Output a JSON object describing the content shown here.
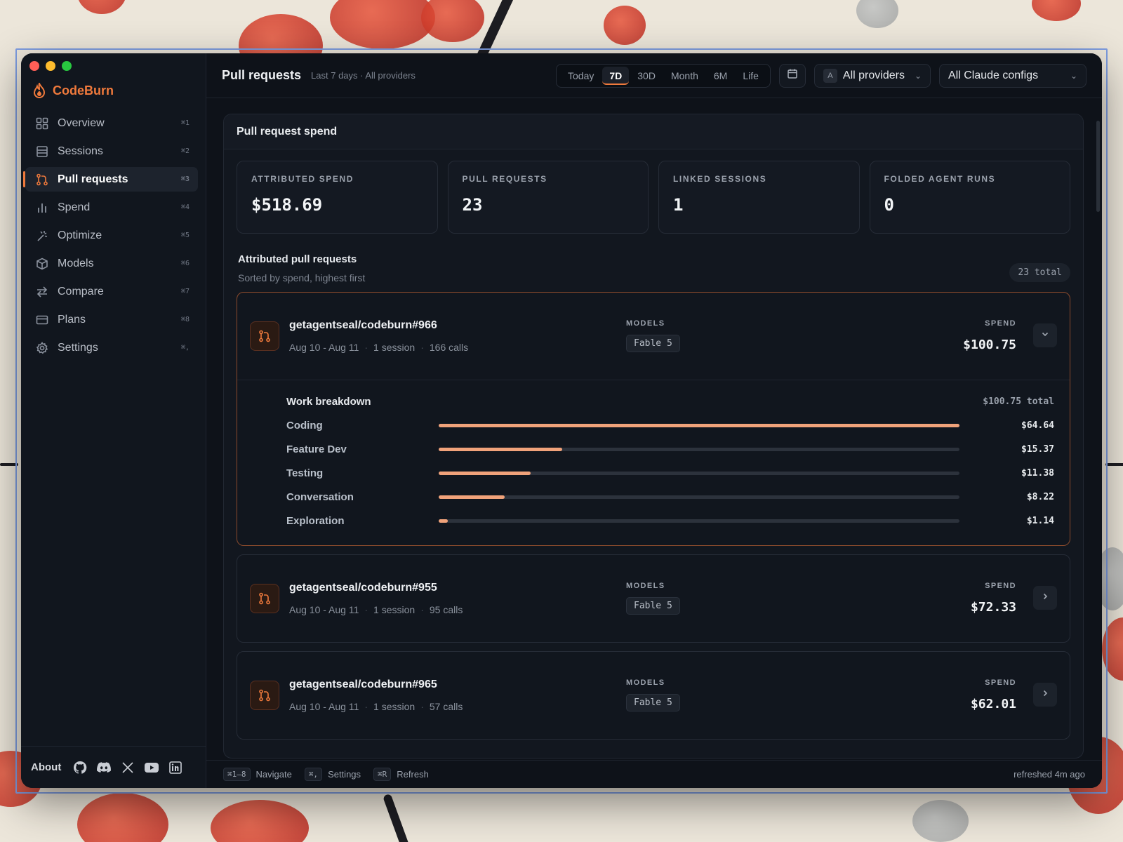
{
  "sidebar": {
    "brand": "CodeBurn",
    "items": [
      {
        "label": "Overview",
        "kbd": "⌘1",
        "icon": "grid-icon",
        "active": false
      },
      {
        "label": "Sessions",
        "kbd": "⌘2",
        "icon": "list-icon",
        "active": false
      },
      {
        "label": "Pull requests",
        "kbd": "⌘3",
        "icon": "git-pull-request-icon",
        "active": true
      },
      {
        "label": "Spend",
        "kbd": "⌘4",
        "icon": "bar-chart-icon",
        "active": false
      },
      {
        "label": "Optimize",
        "kbd": "⌘5",
        "icon": "wand-icon",
        "active": false
      },
      {
        "label": "Models",
        "kbd": "⌘6",
        "icon": "cube-icon",
        "active": false
      },
      {
        "label": "Compare",
        "kbd": "⌘7",
        "icon": "arrows-swap-icon",
        "active": false
      },
      {
        "label": "Plans",
        "kbd": "⌘8",
        "icon": "credit-card-icon",
        "active": false
      },
      {
        "label": "Settings",
        "kbd": "⌘,",
        "icon": "gear-icon",
        "active": false
      }
    ],
    "footer": {
      "about": "About",
      "icons": [
        "github-icon",
        "discord-icon",
        "x-icon",
        "youtube-icon",
        "linkedin-icon"
      ]
    }
  },
  "topbar": {
    "title": "Pull requests",
    "subtitle": "Last 7 days · All providers",
    "ranges": [
      {
        "label": "Today",
        "active": false
      },
      {
        "label": "7D",
        "active": true
      },
      {
        "label": "30D",
        "active": false
      },
      {
        "label": "Month",
        "active": false
      },
      {
        "label": "6M",
        "active": false
      },
      {
        "label": "Life",
        "active": false
      }
    ],
    "provider_badge": "A",
    "provider": "All providers",
    "config": "All Claude configs"
  },
  "panel": {
    "title": "Pull request spend",
    "stats": [
      {
        "label": "ATTRIBUTED SPEND",
        "value": "$518.69"
      },
      {
        "label": "PULL REQUESTS",
        "value": "23"
      },
      {
        "label": "LINKED SESSIONS",
        "value": "1"
      },
      {
        "label": "FOLDED AGENT RUNS",
        "value": "0"
      }
    ],
    "list_title": "Attributed pull requests",
    "list_sub": "Sorted by spend, highest first",
    "total": "23 total",
    "models_label": "MODELS",
    "spend_label": "SPEND",
    "prs": [
      {
        "name": "getagentseal/codeburn#966",
        "dates": "Aug 10 - Aug 11",
        "sessions": "1 session",
        "calls": "166 calls",
        "model": "Fable 5",
        "spend": "$100.75",
        "expanded": true,
        "breakdown": {
          "title": "Work breakdown",
          "total": "$100.75 total",
          "rows": [
            {
              "label": "Coding",
              "value": "$64.64",
              "amount": 64.64
            },
            {
              "label": "Feature Dev",
              "value": "$15.37",
              "amount": 15.37
            },
            {
              "label": "Testing",
              "value": "$11.38",
              "amount": 11.38
            },
            {
              "label": "Conversation",
              "value": "$8.22",
              "amount": 8.22
            },
            {
              "label": "Exploration",
              "value": "$1.14",
              "amount": 1.14
            }
          ]
        }
      },
      {
        "name": "getagentseal/codeburn#955",
        "dates": "Aug 10 - Aug 11",
        "sessions": "1 session",
        "calls": "95 calls",
        "model": "Fable 5",
        "spend": "$72.33",
        "expanded": false
      },
      {
        "name": "getagentseal/codeburn#965",
        "dates": "Aug 10 - Aug 11",
        "sessions": "1 session",
        "calls": "57 calls",
        "model": "Fable 5",
        "spend": "$62.01",
        "expanded": false
      }
    ]
  },
  "statusbar": {
    "items": [
      {
        "kbd": "⌘1–8",
        "label": "Navigate"
      },
      {
        "kbd": "⌘,",
        "label": "Settings"
      },
      {
        "kbd": "⌘R",
        "label": "Refresh"
      }
    ],
    "refreshed": "refreshed 4m ago"
  },
  "colors": {
    "accent": "#f07a3c",
    "bar": "#f0a27a",
    "background": "#0d1118"
  }
}
